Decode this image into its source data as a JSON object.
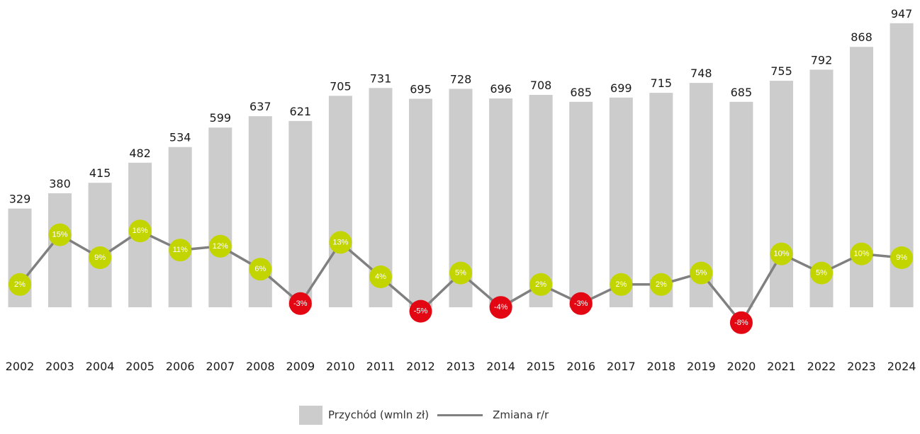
{
  "chart_data": {
    "type": "bar",
    "categories": [
      "2002",
      "2003",
      "2004",
      "2005",
      "2006",
      "2007",
      "2008",
      "2009",
      "2010",
      "2011",
      "2012",
      "2013",
      "2014",
      "2015",
      "2016",
      "2017",
      "2018",
      "2019",
      "2020",
      "2021",
      "2022",
      "2023",
      "2024"
    ],
    "series": [
      {
        "name": "Przychód (wmln zł)",
        "type": "bar",
        "values": [
          329,
          380,
          415,
          482,
          534,
          599,
          637,
          621,
          705,
          731,
          695,
          728,
          696,
          708,
          685,
          699,
          715,
          748,
          685,
          755,
          792,
          868,
          947
        ]
      },
      {
        "name": "Zmiana r/r",
        "type": "line",
        "values": [
          2,
          15,
          9,
          16,
          11,
          12,
          6,
          -3,
          13,
          4,
          -5,
          5,
          -4,
          2,
          -3,
          2,
          2,
          5,
          -8,
          10,
          5,
          10,
          9
        ],
        "labels": [
          "2%",
          "15%",
          "9%",
          "16%",
          "11%",
          "12%",
          "6%",
          "-3%",
          "13%",
          "4%",
          "-5%",
          "5%",
          "-4%",
          "2%",
          "-3%",
          "2%",
          "2%",
          "5%",
          "-8%",
          "10%",
          "5%",
          "10%",
          "9%"
        ]
      }
    ],
    "legend": "bottom-center",
    "colors": {
      "bar": "#cccccc",
      "line": "#808080",
      "positive": "#c2d500",
      "negative": "#e30613"
    }
  },
  "legend": {
    "bar_label": "Przychód (wmln zł)",
    "line_label": "Zmiana r/r"
  }
}
